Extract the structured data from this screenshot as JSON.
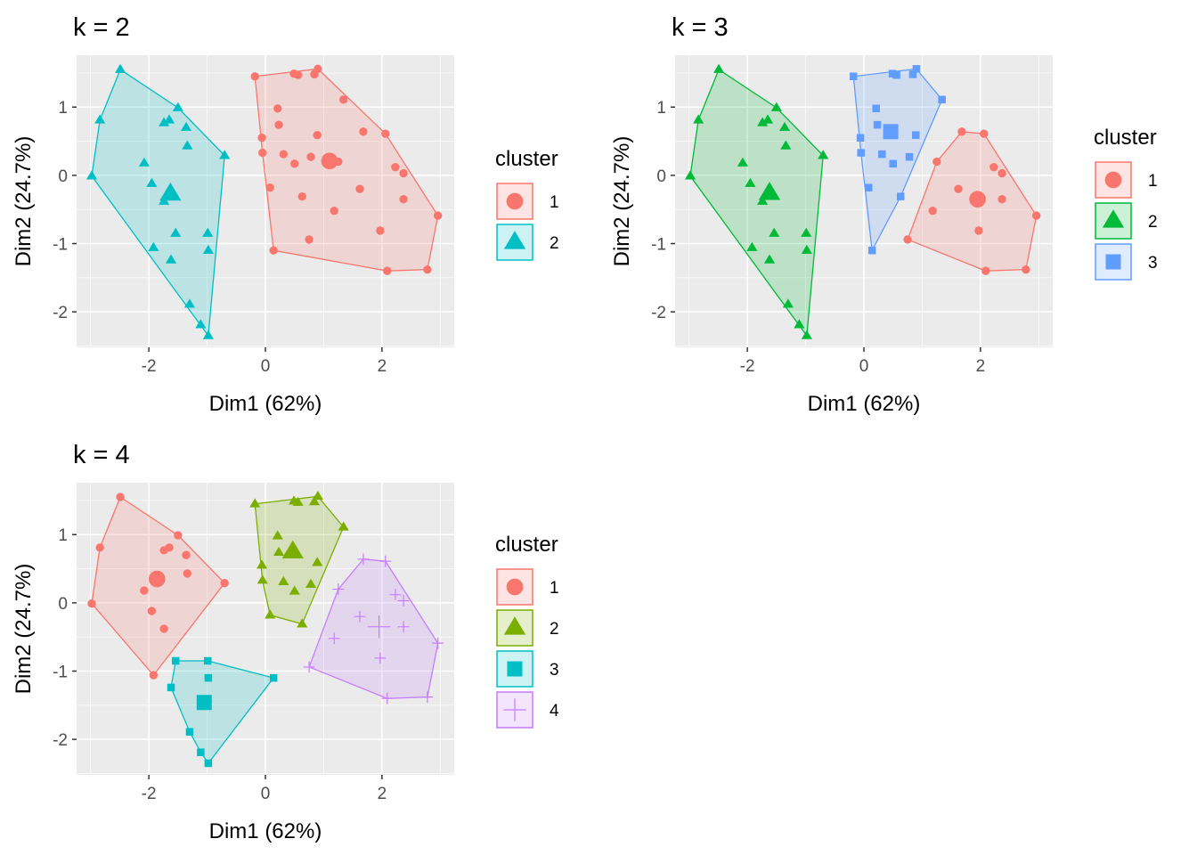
{
  "chart_data": {
    "type": "scatter",
    "points": [
      {
        "x": -2.49,
        "y": 1.55,
        "k2": 2,
        "k3": 2,
        "k4": 1
      },
      {
        "x": -1.5,
        "y": 0.99,
        "k2": 2,
        "k3": 2,
        "k4": 1
      },
      {
        "x": -1.65,
        "y": 0.81,
        "k2": 2,
        "k3": 2,
        "k4": 1
      },
      {
        "x": -1.74,
        "y": 0.77,
        "k2": 2,
        "k3": 2,
        "k4": 1
      },
      {
        "x": -1.36,
        "y": 0.7,
        "k2": 2,
        "k3": 2,
        "k4": 1
      },
      {
        "x": -1.34,
        "y": 0.43,
        "k2": 2,
        "k3": 2,
        "k4": 1
      },
      {
        "x": -2.84,
        "y": 0.81,
        "k2": 2,
        "k3": 2,
        "k4": 1
      },
      {
        "x": -0.7,
        "y": 0.29,
        "k2": 2,
        "k3": 2,
        "k4": 1
      },
      {
        "x": -2.08,
        "y": 0.18,
        "k2": 2,
        "k3": 2,
        "k4": 1
      },
      {
        "x": -2.98,
        "y": -0.01,
        "k2": 2,
        "k3": 2,
        "k4": 1
      },
      {
        "x": -1.95,
        "y": -0.12,
        "k2": 2,
        "k3": 2,
        "k4": 1
      },
      {
        "x": -1.74,
        "y": -0.38,
        "k2": 2,
        "k3": 2,
        "k4": 1
      },
      {
        "x": -1.54,
        "y": -0.85,
        "k2": 2,
        "k3": 2,
        "k4": 3
      },
      {
        "x": -0.99,
        "y": -0.85,
        "k2": 2,
        "k3": 2,
        "k4": 3
      },
      {
        "x": -1.92,
        "y": -1.06,
        "k2": 2,
        "k3": 2,
        "k4": 1
      },
      {
        "x": -0.98,
        "y": -1.1,
        "k2": 2,
        "k3": 2,
        "k4": 3
      },
      {
        "x": -1.62,
        "y": -1.24,
        "k2": 2,
        "k3": 2,
        "k4": 3
      },
      {
        "x": -1.3,
        "y": -1.89,
        "k2": 2,
        "k3": 2,
        "k4": 3
      },
      {
        "x": -1.11,
        "y": -2.19,
        "k2": 2,
        "k3": 2,
        "k4": 3
      },
      {
        "x": -0.98,
        "y": -2.35,
        "k2": 2,
        "k3": 2,
        "k4": 3
      },
      {
        "x": -0.18,
        "y": 1.45,
        "k2": 1,
        "k3": 3,
        "k4": 2
      },
      {
        "x": 0.49,
        "y": 1.49,
        "k2": 1,
        "k3": 3,
        "k4": 2
      },
      {
        "x": 0.56,
        "y": 1.47,
        "k2": 1,
        "k3": 3,
        "k4": 2
      },
      {
        "x": 0.9,
        "y": 1.56,
        "k2": 1,
        "k3": 3,
        "k4": 2
      },
      {
        "x": 0.84,
        "y": 1.48,
        "k2": 1,
        "k3": 3,
        "k4": 2
      },
      {
        "x": 1.34,
        "y": 1.11,
        "k2": 1,
        "k3": 3,
        "k4": 2
      },
      {
        "x": 0.21,
        "y": 0.98,
        "k2": 1,
        "k3": 3,
        "k4": 2
      },
      {
        "x": 0.23,
        "y": 0.74,
        "k2": 1,
        "k3": 3,
        "k4": 2
      },
      {
        "x": -0.06,
        "y": 0.55,
        "k2": 1,
        "k3": 3,
        "k4": 2
      },
      {
        "x": -0.05,
        "y": 0.33,
        "k2": 1,
        "k3": 3,
        "k4": 2
      },
      {
        "x": 0.89,
        "y": 0.59,
        "k2": 1,
        "k3": 3,
        "k4": 2
      },
      {
        "x": 0.31,
        "y": 0.31,
        "k2": 1,
        "k3": 3,
        "k4": 2
      },
      {
        "x": 0.78,
        "y": 0.27,
        "k2": 1,
        "k3": 3,
        "k4": 2
      },
      {
        "x": 0.5,
        "y": 0.17,
        "k2": 1,
        "k3": 3,
        "k4": 2
      },
      {
        "x": 0.08,
        "y": -0.18,
        "k2": 1,
        "k3": 3,
        "k4": 2
      },
      {
        "x": 0.63,
        "y": -0.31,
        "k2": 1,
        "k3": 3,
        "k4": 2
      },
      {
        "x": 0.14,
        "y": -1.1,
        "k2": 1,
        "k3": 3,
        "k4": 3
      },
      {
        "x": 1.68,
        "y": 0.64,
        "k2": 1,
        "k3": 1,
        "k4": 4
      },
      {
        "x": 2.06,
        "y": 0.61,
        "k2": 1,
        "k3": 1,
        "k4": 4
      },
      {
        "x": 2.23,
        "y": 0.12,
        "k2": 1,
        "k3": 1,
        "k4": 4
      },
      {
        "x": 2.37,
        "y": 0.03,
        "k2": 1,
        "k3": 1,
        "k4": 4
      },
      {
        "x": 1.25,
        "y": 0.2,
        "k2": 1,
        "k3": 1,
        "k4": 4
      },
      {
        "x": 1.62,
        "y": -0.2,
        "k2": 1,
        "k3": 1,
        "k4": 4
      },
      {
        "x": 2.37,
        "y": -0.35,
        "k2": 1,
        "k3": 1,
        "k4": 4
      },
      {
        "x": 1.18,
        "y": -0.52,
        "k2": 1,
        "k3": 1,
        "k4": 4
      },
      {
        "x": 2.96,
        "y": -0.59,
        "k2": 1,
        "k3": 1,
        "k4": 4
      },
      {
        "x": 1.97,
        "y": -0.81,
        "k2": 1,
        "k3": 1,
        "k4": 4
      },
      {
        "x": 0.75,
        "y": -0.94,
        "k2": 1,
        "k3": 1,
        "k4": 4
      },
      {
        "x": 2.09,
        "y": -1.4,
        "k2": 1,
        "k3": 1,
        "k4": 4
      },
      {
        "x": 2.78,
        "y": -1.38,
        "k2": 1,
        "k3": 1,
        "k4": 4
      }
    ],
    "panels": [
      {
        "title": "k = 2",
        "key": "k2",
        "xlabel": "Dim1 (62%)",
        "ylabel": "Dim2 (24.7%)",
        "xlim": [
          -3.24,
          3.24
        ],
        "ylim": [
          -2.52,
          1.76
        ],
        "xticks": [
          -2,
          0,
          2
        ],
        "yticks": [
          1,
          0,
          -1,
          -2
        ],
        "legend_title": "cluster",
        "legend_position": "right",
        "clusters": [
          {
            "label": "1",
            "color": "#F8766D",
            "fill": "#F8766D",
            "shape": "circle",
            "centroid": [
              1.1,
              0.21
            ]
          },
          {
            "label": "2",
            "color": "#00BFC4",
            "fill": "#00BFC4",
            "shape": "triangle",
            "centroid": [
              -1.63,
              -0.27
            ]
          }
        ]
      },
      {
        "title": "k = 3",
        "key": "k3",
        "xlabel": "Dim1 (62%)",
        "ylabel": "Dim2 (24.7%)",
        "xlim": [
          -3.24,
          3.24
        ],
        "ylim": [
          -2.52,
          1.76
        ],
        "xticks": [
          -2,
          0,
          2
        ],
        "yticks": [
          1,
          0,
          -1,
          -2
        ],
        "legend_title": "cluster",
        "legend_position": "right",
        "clusters": [
          {
            "label": "1",
            "color": "#F8766D",
            "fill": "#F8766D",
            "shape": "circle",
            "centroid": [
              1.95,
              -0.35
            ]
          },
          {
            "label": "2",
            "color": "#00BA38",
            "fill": "#00BA38",
            "shape": "triangle",
            "centroid": [
              -1.62,
              -0.26
            ]
          },
          {
            "label": "3",
            "color": "#619CFF",
            "fill": "#619CFF",
            "shape": "square",
            "centroid": [
              0.46,
              0.64
            ]
          }
        ]
      },
      {
        "title": "k = 4",
        "key": "k4",
        "xlabel": "Dim1 (62%)",
        "ylabel": "Dim2 (24.7%)",
        "xlim": [
          -3.24,
          3.24
        ],
        "ylim": [
          -2.52,
          1.76
        ],
        "xticks": [
          -2,
          0,
          2
        ],
        "yticks": [
          1,
          0,
          -1,
          -2
        ],
        "legend_title": "cluster",
        "legend_position": "right",
        "clusters": [
          {
            "label": "1",
            "color": "#F8766D",
            "fill": "#F8766D",
            "shape": "circle",
            "centroid": [
              -1.86,
              0.35
            ]
          },
          {
            "label": "2",
            "color": "#7CAE00",
            "fill": "#7CAE00",
            "shape": "triangle",
            "centroid": [
              0.47,
              0.75
            ]
          },
          {
            "label": "3",
            "color": "#00BFC4",
            "fill": "#00BFC4",
            "shape": "square",
            "centroid": [
              -1.05,
              -1.46
            ]
          },
          {
            "label": "4",
            "color": "#C77CFF",
            "fill": "#C77CFF",
            "shape": "plus",
            "centroid": [
              1.95,
              -0.35
            ]
          }
        ]
      }
    ],
    "grid": true,
    "background": "#EBEBEB"
  }
}
